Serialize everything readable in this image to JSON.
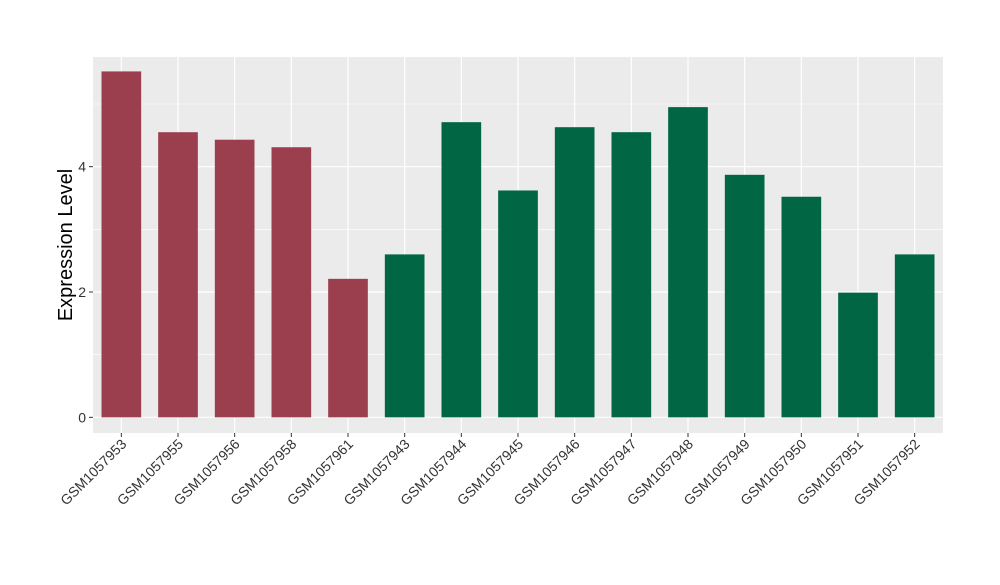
{
  "chart_data": {
    "type": "bar",
    "title": "",
    "xlabel": "",
    "ylabel": "Expression Level",
    "ylim": [
      -0.25,
      5.75
    ],
    "yticks": [
      0,
      2,
      4
    ],
    "grid": true,
    "legend": "none",
    "categories": [
      "GSM1057953",
      "GSM1057955",
      "GSM1057956",
      "GSM1057958",
      "GSM1057961",
      "GSM1057943",
      "GSM1057944",
      "GSM1057945",
      "GSM1057946",
      "GSM1057947",
      "GSM1057948",
      "GSM1057949",
      "GSM1057950",
      "GSM1057951",
      "GSM1057952"
    ],
    "values": [
      5.52,
      4.55,
      4.43,
      4.31,
      2.21,
      2.6,
      4.71,
      3.62,
      4.63,
      4.55,
      4.95,
      3.87,
      3.52,
      1.99,
      2.6
    ],
    "groups": [
      0,
      0,
      0,
      0,
      0,
      1,
      1,
      1,
      1,
      1,
      1,
      1,
      1,
      1,
      1
    ],
    "group_colors": [
      "#9b3f4f",
      "#006644"
    ],
    "panel_color": "#ebebeb",
    "grid_color": "#ffffff"
  }
}
